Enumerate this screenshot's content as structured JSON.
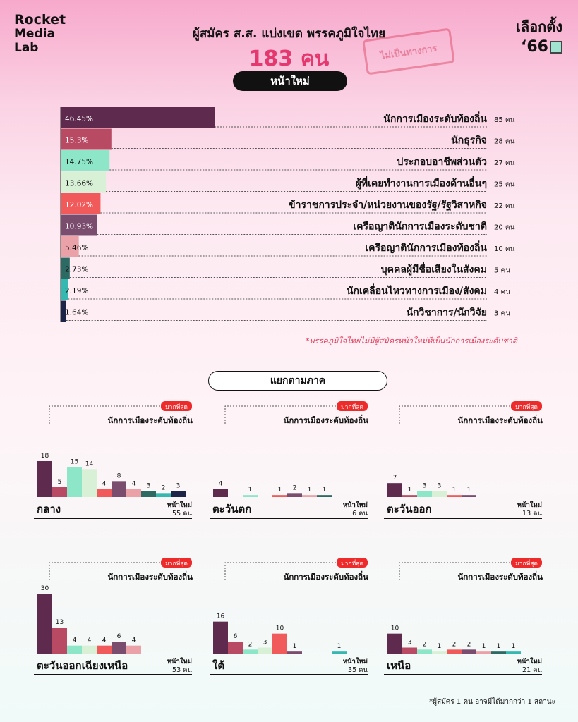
{
  "brand": {
    "line1": "Rocket",
    "line2": "Media",
    "line3": "Lab"
  },
  "badge": {
    "line1": "เลือกตั้ง",
    "line2": "‘66"
  },
  "title": "ผู้สมัคร ส.ส. แบ่งเขต พรรคภูมิใจไทย",
  "total": "183 คน",
  "stamp": "ไม่เป็นทางการ",
  "section": "หน้าใหม่",
  "note": "*พรรคภูมิใจไทยไม่มีผู้สมัครหน้าใหม่ที่เป็นนักการเมืองระดับชาติ",
  "region_title": "แยกตามภาค",
  "footnote": "*ผู้สมัคร 1 คน อาจมีได้มากกว่า 1 สถานะ",
  "colors": [
    "#5e2b4f",
    "#b84a64",
    "#8ce6c7",
    "#d7f0d6",
    "#f05a5a",
    "#7a4d6e",
    "#eaa2a8",
    "#2d6a63",
    "#35b8b0",
    "#1c2448"
  ],
  "chart_data": [
    {
      "type": "bar",
      "orientation": "horizontal",
      "categories": [
        "นักการเมืองระดับท้องถิ่น",
        "นักธุรกิจ",
        "ประกอบอาชีพส่วนตัว",
        "ผู้ที่เคยทำงานการเมืองด้านอื่นๆ",
        "ข้าราชการประจำ/หน่วยงานของรัฐ/รัฐวิสาหกิจ",
        "เครือญาตินักการเมืองระดับชาติ",
        "เครือญาตินักการเมืองท้องถิ่น",
        "บุคคลผู้มีชื่อเสียงในสังคม",
        "นักเคลื่อนไหวทางการเมือง/สังคม",
        "นักวิชาการ/นักวิจัย"
      ],
      "values": [
        85,
        28,
        27,
        25,
        22,
        20,
        10,
        5,
        4,
        3
      ],
      "percent_labels": [
        "46.45%",
        "15.3%",
        "14.75%",
        "13.66%",
        "12.02%",
        "10.93%",
        "5.46%",
        "2.73%",
        "2.19%",
        "1.64%"
      ],
      "count_labels": [
        "85 คน",
        "28 คน",
        "27 คน",
        "25 คน",
        "22 คน",
        "20 คน",
        "10 คน",
        "5 คน",
        "4 คน",
        "3 คน"
      ]
    },
    {
      "type": "bar",
      "region": "กลาง",
      "total_label": "หน้าใหม่",
      "total_value": "55 คน",
      "top_tag": "มากที่สุด",
      "top_label": "นักการเมืองระดับท้องถิ่น",
      "values": [
        18,
        5,
        15,
        14,
        4,
        8,
        4,
        3,
        2,
        3
      ]
    },
    {
      "type": "bar",
      "region": "ตะวันตก",
      "total_label": "หน้าใหม่",
      "total_value": "6 คน",
      "top_tag": "มากที่สุด",
      "top_label": "นักการเมืองระดับท้องถิ่น",
      "values": [
        4,
        0,
        1,
        0,
        1,
        2,
        1,
        1,
        0,
        0
      ]
    },
    {
      "type": "bar",
      "region": "ตะวันออก",
      "total_label": "หน้าใหม่",
      "total_value": "13 คน",
      "top_tag": "มากที่สุด",
      "top_label": "นักการเมืองระดับท้องถิ่น",
      "values": [
        7,
        1,
        3,
        3,
        1,
        1,
        0,
        0,
        0,
        0
      ]
    },
    {
      "type": "bar",
      "region": "ตะวันออกเฉียงเหนือ",
      "total_label": "หน้าใหม่",
      "total_value": "53 คน",
      "top_tag": "มากที่สุด",
      "top_label": "นักการเมืองระดับท้องถิ่น",
      "values": [
        30,
        13,
        4,
        4,
        4,
        6,
        4,
        0,
        0,
        0
      ]
    },
    {
      "type": "bar",
      "region": "ใต้",
      "total_label": "หน้าใหม่",
      "total_value": "35 คน",
      "top_tag": "มากที่สุด",
      "top_label": "นักการเมืองระดับท้องถิ่น",
      "values": [
        16,
        6,
        2,
        3,
        10,
        1,
        0,
        0,
        1,
        0
      ]
    },
    {
      "type": "bar",
      "region": "เหนือ",
      "total_label": "หน้าใหม่",
      "total_value": "21 คน",
      "top_tag": "มากที่สุด",
      "top_label": "นักการเมืองระดับท้องถิ่น",
      "values": [
        10,
        3,
        2,
        1,
        2,
        2,
        1,
        1,
        1,
        0
      ]
    }
  ]
}
